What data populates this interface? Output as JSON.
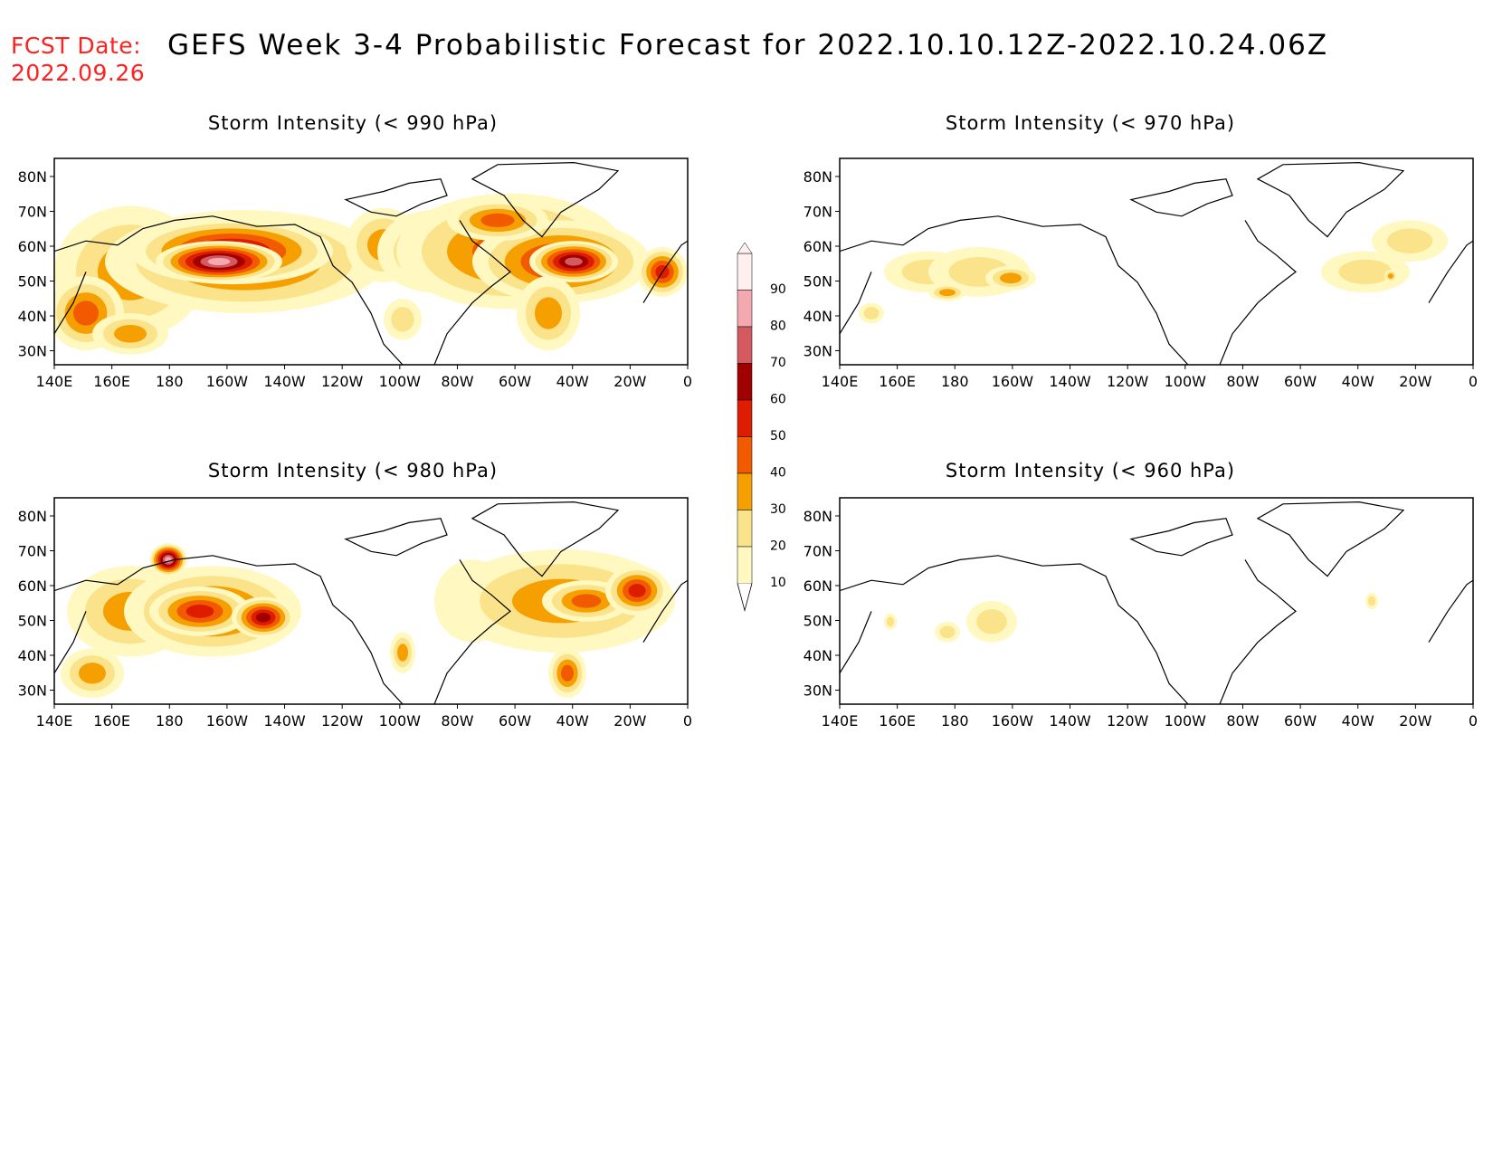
{
  "header": {
    "fcst_label": "FCST Date:",
    "fcst_date": "2022.09.26",
    "title": "GEFS Week 3-4 Probabilistic Forecast for 2022.10.10.12Z-2022.10.24.06Z"
  },
  "panels": [
    {
      "title": "Storm Intensity (< 990 hPa)"
    },
    {
      "title": "Storm Intensity (< 970 hPa)"
    },
    {
      "title": "Storm Intensity (< 980 hPa)"
    },
    {
      "title": "Storm Intensity (< 960 hPa)"
    }
  ],
  "axes": {
    "x_labels": [
      "140E",
      "160E",
      "180",
      "160W",
      "140W",
      "120W",
      "100W",
      "80W",
      "60W",
      "40W",
      "20W",
      "0"
    ],
    "y_labels": [
      "80N",
      "70N",
      "60N",
      "50N",
      "40N",
      "30N"
    ]
  },
  "colorbar": {
    "labels": [
      "90",
      "80",
      "70",
      "60",
      "50",
      "40",
      "30",
      "20",
      "10"
    ],
    "colors": [
      "#fff0f0",
      "#f4a8b0",
      "#d55a60",
      "#a00000",
      "#dd1c00",
      "#f25a00",
      "#f5a000",
      "#fae38a",
      "#fff8c0"
    ]
  }
}
